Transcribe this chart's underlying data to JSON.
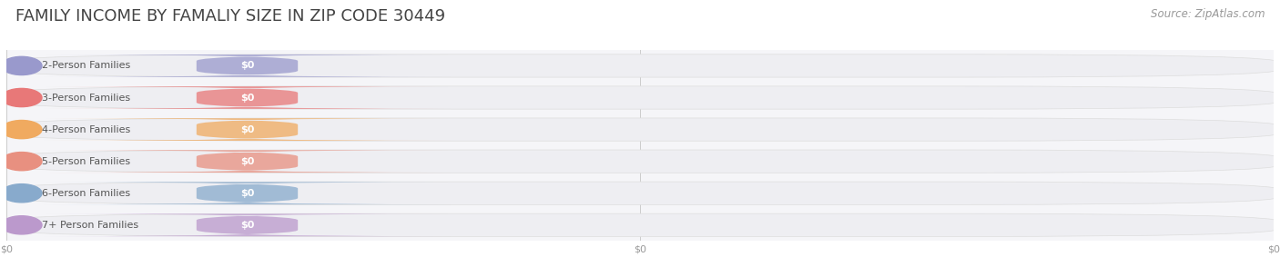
{
  "title": "FAMILY INCOME BY FAMALIY SIZE IN ZIP CODE 30449",
  "source": "Source: ZipAtlas.com",
  "categories": [
    "2-Person Families",
    "3-Person Families",
    "4-Person Families",
    "5-Person Families",
    "6-Person Families",
    "7+ Person Families"
  ],
  "values": [
    0,
    0,
    0,
    0,
    0,
    0
  ],
  "bar_colors": [
    "#9999cc",
    "#e87878",
    "#f0aa60",
    "#e89080",
    "#88aacc",
    "#bb99cc"
  ],
  "background_color": "#ffffff",
  "plot_bg_color": "#f5f5f8",
  "bar_bg_color": "#eeeef2",
  "title_fontsize": 13,
  "source_fontsize": 8.5,
  "bar_label_fontsize": 8,
  "category_fontsize": 8,
  "value_labels": [
    "$0",
    "$0",
    "$0",
    "$0",
    "$0",
    "$0"
  ],
  "x_tick_labels": [
    "$0",
    "$0",
    "$0"
  ],
  "x_tick_positions": [
    0.0,
    0.5,
    1.0
  ]
}
